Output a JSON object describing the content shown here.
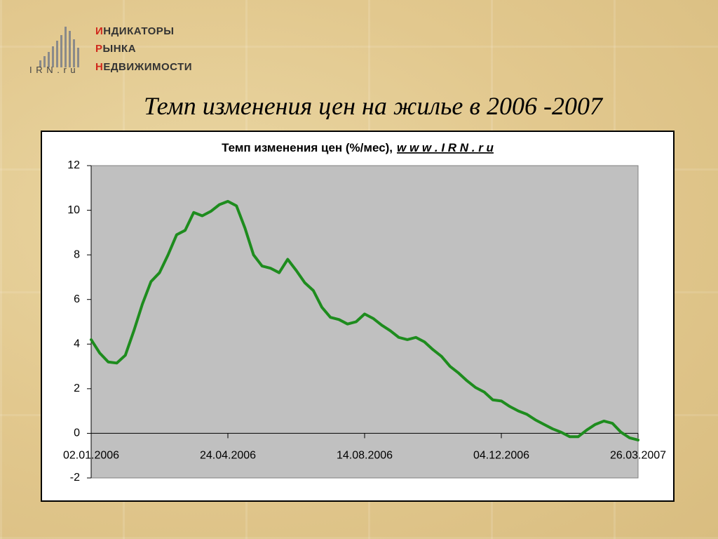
{
  "logo": {
    "lines": [
      "ИНДИКАТОРЫ",
      "РЫНКА",
      "НЕДВИЖИМОСТИ"
    ],
    "site": "I R N . r u"
  },
  "slide_title": "Темп изменения цен на жилье в 2006 -2007",
  "chart_data": {
    "type": "line",
    "title": "Темп изменения цен (%/мес),",
    "title_link": "w w w . I R N . r u",
    "x": [
      "02.01.2006",
      "09.01.2006",
      "16.01.2006",
      "23.01.2006",
      "30.01.2006",
      "06.02.2006",
      "13.02.2006",
      "20.02.2006",
      "27.02.2006",
      "06.03.2006",
      "13.03.2006",
      "20.03.2006",
      "27.03.2006",
      "03.04.2006",
      "10.04.2006",
      "17.04.2006",
      "24.04.2006",
      "01.05.2006",
      "08.05.2006",
      "15.05.2006",
      "22.05.2006",
      "29.05.2006",
      "05.06.2006",
      "12.06.2006",
      "19.06.2006",
      "26.06.2006",
      "03.07.2006",
      "10.07.2006",
      "17.07.2006",
      "24.07.2006",
      "31.07.2006",
      "07.08.2006",
      "14.08.2006",
      "21.08.2006",
      "28.08.2006",
      "04.09.2006",
      "11.09.2006",
      "18.09.2006",
      "25.09.2006",
      "02.10.2006",
      "09.10.2006",
      "16.10.2006",
      "23.10.2006",
      "30.10.2006",
      "06.11.2006",
      "13.11.2006",
      "20.11.2006",
      "27.11.2006",
      "04.12.2006",
      "11.12.2006",
      "18.12.2006",
      "25.12.2006",
      "01.01.2007",
      "08.01.2007",
      "15.01.2007",
      "22.01.2007",
      "29.01.2007",
      "05.02.2007",
      "12.02.2007",
      "19.02.2007",
      "26.02.2007",
      "05.03.2007",
      "12.03.2007",
      "19.03.2007",
      "26.03.2007"
    ],
    "series": [
      {
        "color": "#1e8c1e",
        "values": [
          4.2,
          3.6,
          3.2,
          3.15,
          3.5,
          4.6,
          5.8,
          6.8,
          7.2,
          8.0,
          8.9,
          9.1,
          9.9,
          9.75,
          9.95,
          10.25,
          10.4,
          10.2,
          9.2,
          8.0,
          7.5,
          7.4,
          7.2,
          7.8,
          7.3,
          6.75,
          6.4,
          5.65,
          5.2,
          5.1,
          4.9,
          5.0,
          5.35,
          5.15,
          4.85,
          4.6,
          4.3,
          4.2,
          4.3,
          4.1,
          3.75,
          3.45,
          3.0,
          2.7,
          2.35,
          2.05,
          1.85,
          1.5,
          1.45,
          1.2,
          1.0,
          0.85,
          0.6,
          0.4,
          0.2,
          0.05,
          -0.15,
          -0.15,
          0.15,
          0.4,
          0.55,
          0.45,
          0.05,
          -0.2,
          -0.3
        ]
      }
    ],
    "xlim": [
      "02.01.2006",
      "26.03.2007"
    ],
    "xticks": [
      "02.01.2006",
      "24.04.2006",
      "14.08.2006",
      "04.12.2006",
      "26.03.2007"
    ],
    "ylim": [
      -2,
      12
    ],
    "yticks": [
      -2,
      0,
      2,
      4,
      6,
      8,
      10,
      12
    ],
    "plot_background": "#c0c0c0"
  }
}
